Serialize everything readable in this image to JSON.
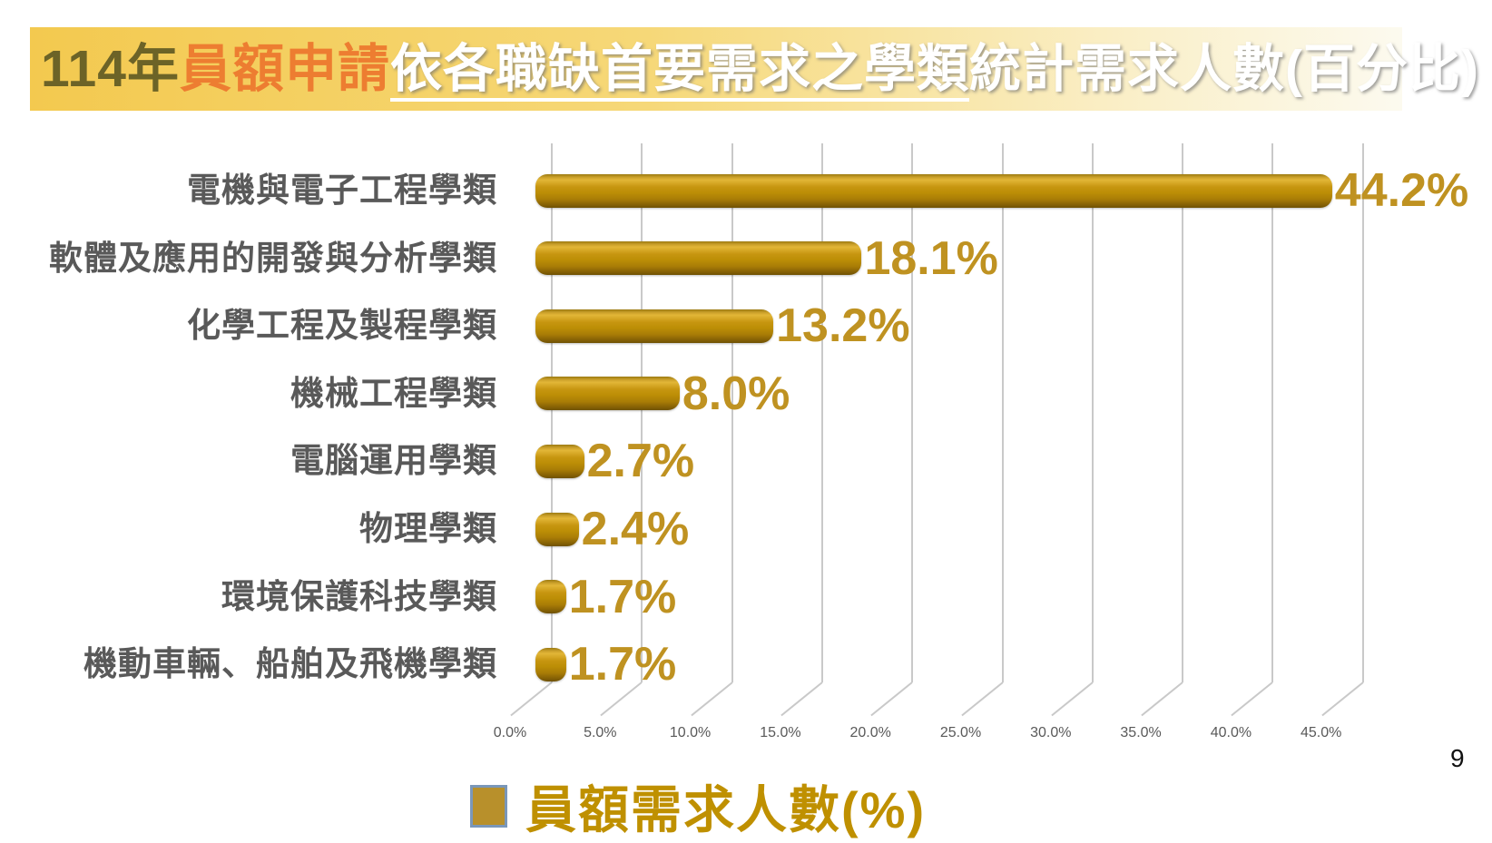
{
  "page": {
    "number": "9"
  },
  "title": {
    "part_year": "114年",
    "part_orange": "員額申請",
    "part_underlined": "依各職缺首要需求之學類",
    "part_rest": "統計需求人數(百分比)",
    "colors": {
      "year": "#6C6327",
      "orange": "#ED7D31",
      "white_text": "#FFFFFF",
      "banner_left": "#F3C94F",
      "banner_right": "#FCFAEF"
    }
  },
  "chart_data": {
    "type": "bar",
    "orientation": "horizontal",
    "title": "114年員額申請依各職缺首要需求之學類統計需求人數(百分比)",
    "categories": [
      "電機與電子工程學類",
      "軟體及應用的開發與分析學類",
      "化學工程及製程學類",
      "機械工程學類",
      "電腦運用學類",
      "物理學類",
      "環境保護科技學類",
      "機動車輛、船舶及飛機學類"
    ],
    "values": [
      44.2,
      18.1,
      13.2,
      8.0,
      2.7,
      2.4,
      1.7,
      1.7
    ],
    "value_labels": [
      "44.2%",
      "18.1%",
      "13.2%",
      "8.0%",
      "2.7%",
      "2.4%",
      "1.7%",
      "1.7%"
    ],
    "x_ticks": [
      "0.0%",
      "5.0%",
      "10.0%",
      "15.0%",
      "20.0%",
      "25.0%",
      "30.0%",
      "35.0%",
      "40.0%",
      "45.0%"
    ],
    "x_tick_values": [
      0,
      5,
      10,
      15,
      20,
      25,
      30,
      35,
      40,
      45
    ],
    "xlim": [
      0,
      45
    ],
    "grid": true,
    "style_3d": true,
    "bar_color": "#BC8E06",
    "value_label_color": "#BF9221",
    "category_label_color": "#595959",
    "grid_color": "#C9C9C9",
    "legend": {
      "label": "員額需求人數(%)",
      "swatch_fill": "#B8902B",
      "swatch_border": "#7A97B9",
      "position": "bottom"
    }
  }
}
